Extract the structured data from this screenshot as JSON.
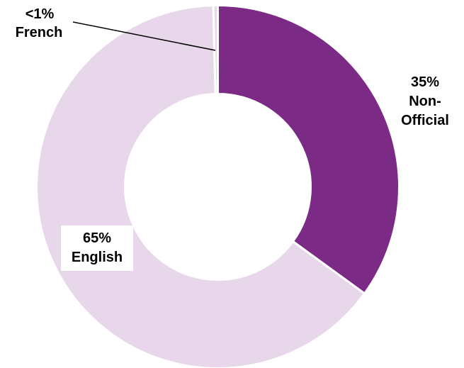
{
  "chart_data": {
    "type": "pie",
    "donut": true,
    "title": "",
    "slices": [
      {
        "label": "Non-Official",
        "value": 35,
        "display": "35%",
        "color": "#7b2a85"
      },
      {
        "label": "English",
        "value": 64.6,
        "display": "65%",
        "color": "#e8d6ea"
      },
      {
        "label": "French",
        "value": 0.4,
        "display": "<1%",
        "color": "#e8d6ea"
      }
    ],
    "labels": {
      "nonofficial": {
        "pct": "35%",
        "line1": "Non-",
        "line2": "Official"
      },
      "english": {
        "pct": "65%",
        "name": "English"
      },
      "french": {
        "pct": "<1%",
        "name": "French"
      }
    }
  }
}
